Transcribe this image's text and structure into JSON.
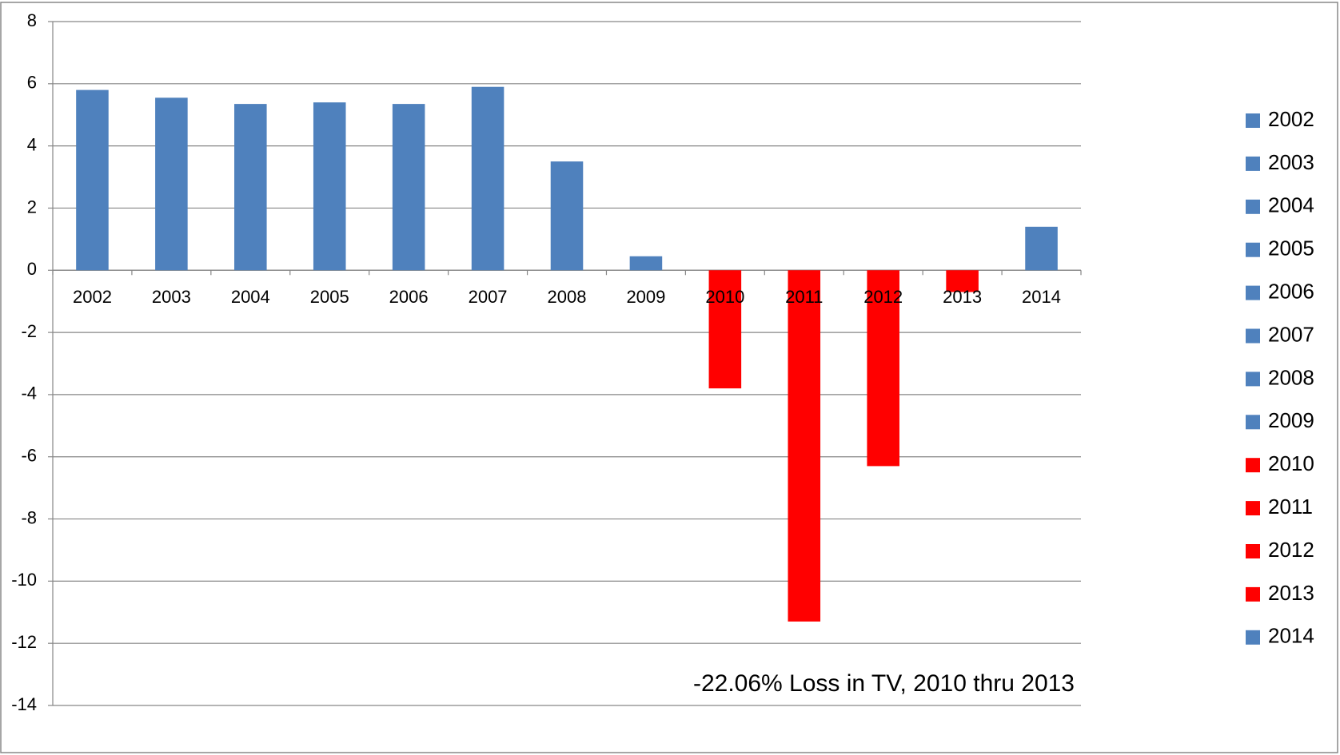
{
  "chart_data": {
    "type": "bar",
    "categories": [
      "2002",
      "2003",
      "2004",
      "2005",
      "2006",
      "2007",
      "2008",
      "2009",
      "2010",
      "2011",
      "2012",
      "2013",
      "2014"
    ],
    "values": [
      5.8,
      5.55,
      5.35,
      5.4,
      5.35,
      5.9,
      3.5,
      0.45,
      -3.8,
      -11.3,
      -6.3,
      -0.7,
      1.4
    ],
    "colors": [
      "#4f81bd",
      "#4f81bd",
      "#4f81bd",
      "#4f81bd",
      "#4f81bd",
      "#4f81bd",
      "#4f81bd",
      "#4f81bd",
      "#ff0000",
      "#ff0000",
      "#ff0000",
      "#ff0000",
      "#4f81bd"
    ],
    "ylim": [
      -14,
      8
    ],
    "yticks": [
      -14,
      -12,
      -10,
      -8,
      -6,
      -4,
      -2,
      0,
      2,
      4,
      6,
      8
    ],
    "grid": true,
    "legend": "right",
    "annotation": "-22.06% Loss in TV, 2010 thru 2013"
  }
}
